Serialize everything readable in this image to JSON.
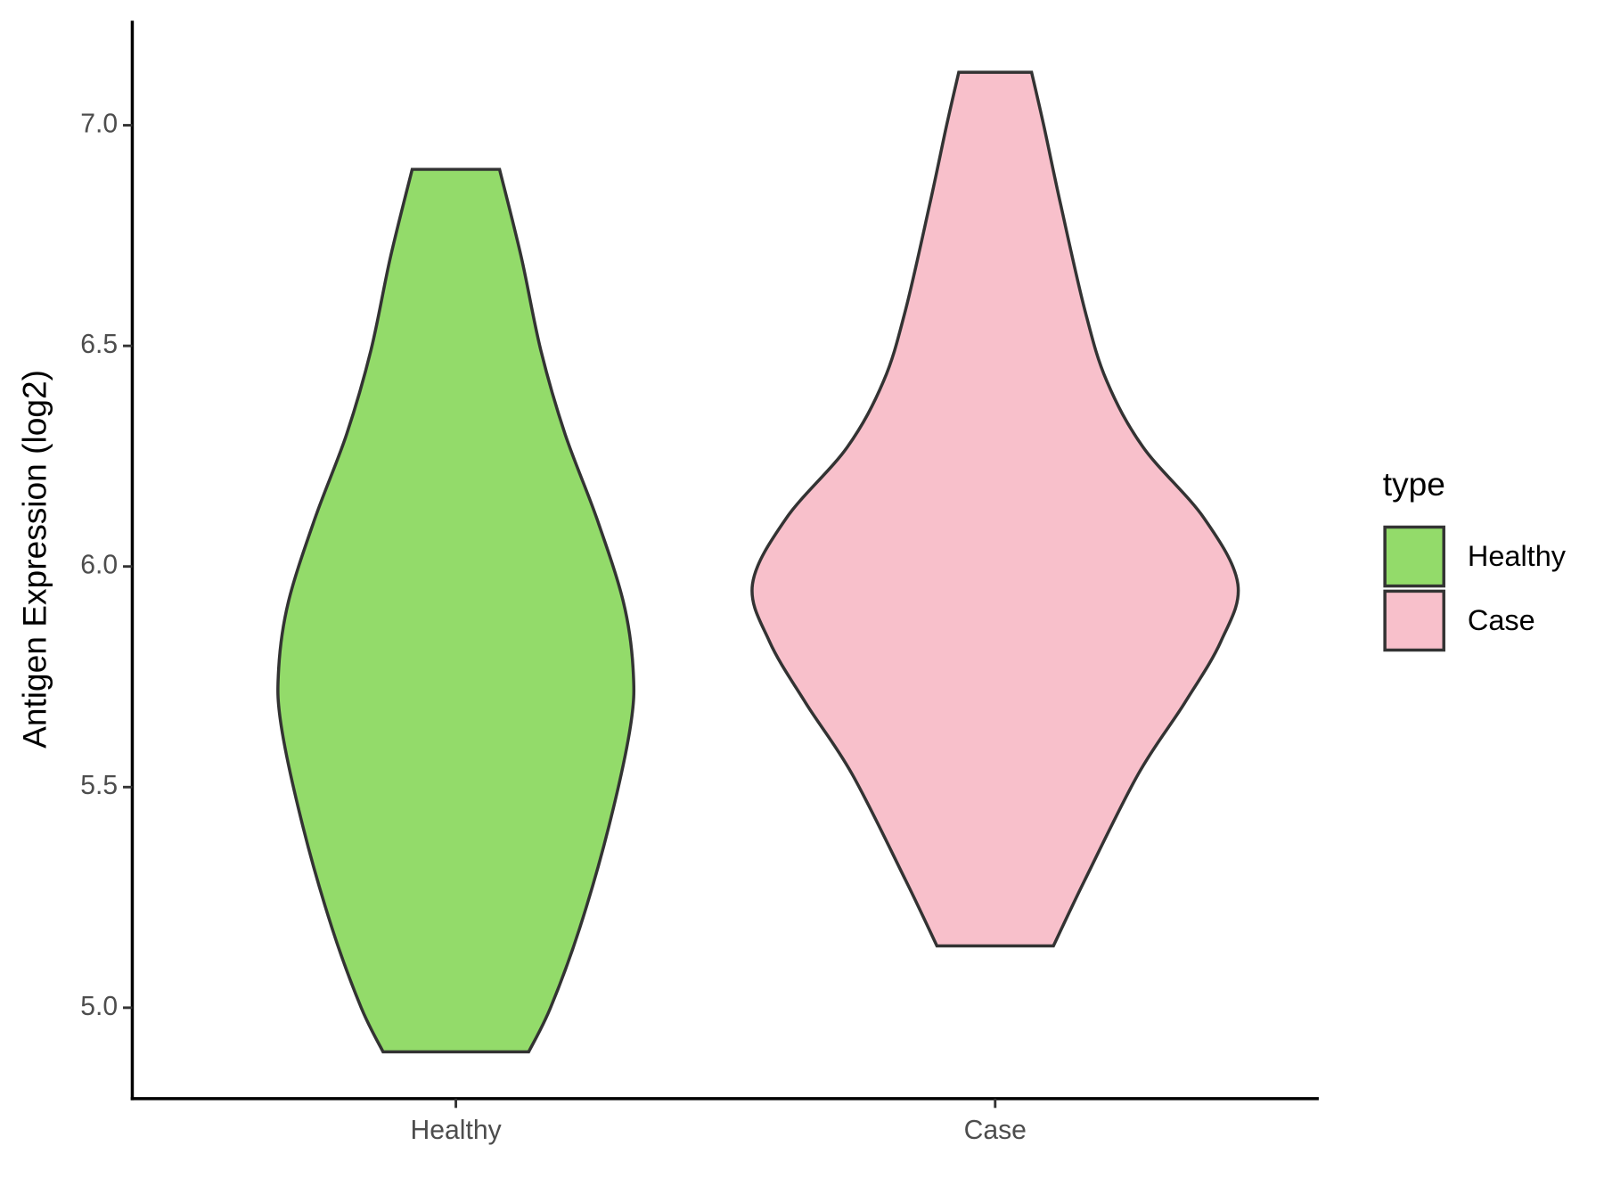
{
  "chart_data": {
    "type": "violin",
    "ylabel": "Antigen Expression (log2)",
    "categories": [
      "Healthy",
      "Case"
    ],
    "series": [
      {
        "name": "Healthy",
        "color": "#93db6a",
        "y": [
          4.9,
          5.0,
          5.18,
          5.41,
          5.64,
          5.77,
          5.92,
          6.11,
          6.3,
          6.49,
          6.7,
          6.9
        ],
        "density": [
          0.3,
          0.39,
          0.51,
          0.63,
          0.72,
          0.73,
          0.69,
          0.58,
          0.45,
          0.35,
          0.27,
          0.18
        ]
      },
      {
        "name": "Case",
        "color": "#f8c0cb",
        "y": [
          5.14,
          5.29,
          5.53,
          5.69,
          5.83,
          5.96,
          6.11,
          6.27,
          6.42,
          6.58,
          6.82,
          7.0,
          7.12
        ],
        "density": [
          0.24,
          0.37,
          0.59,
          0.78,
          0.93,
          1.0,
          0.86,
          0.61,
          0.46,
          0.37,
          0.27,
          0.2,
          0.15
        ]
      }
    ],
    "ylim": [
      4.794,
      7.237
    ],
    "yticks": [
      {
        "value": 5,
        "label": "5.0"
      },
      5.5,
      {
        "value": 6,
        "label": "6.0"
      },
      6.5,
      {
        "value": 7,
        "label": "7.0"
      }
    ],
    "legend": {
      "title": "type",
      "position": "right"
    }
  }
}
